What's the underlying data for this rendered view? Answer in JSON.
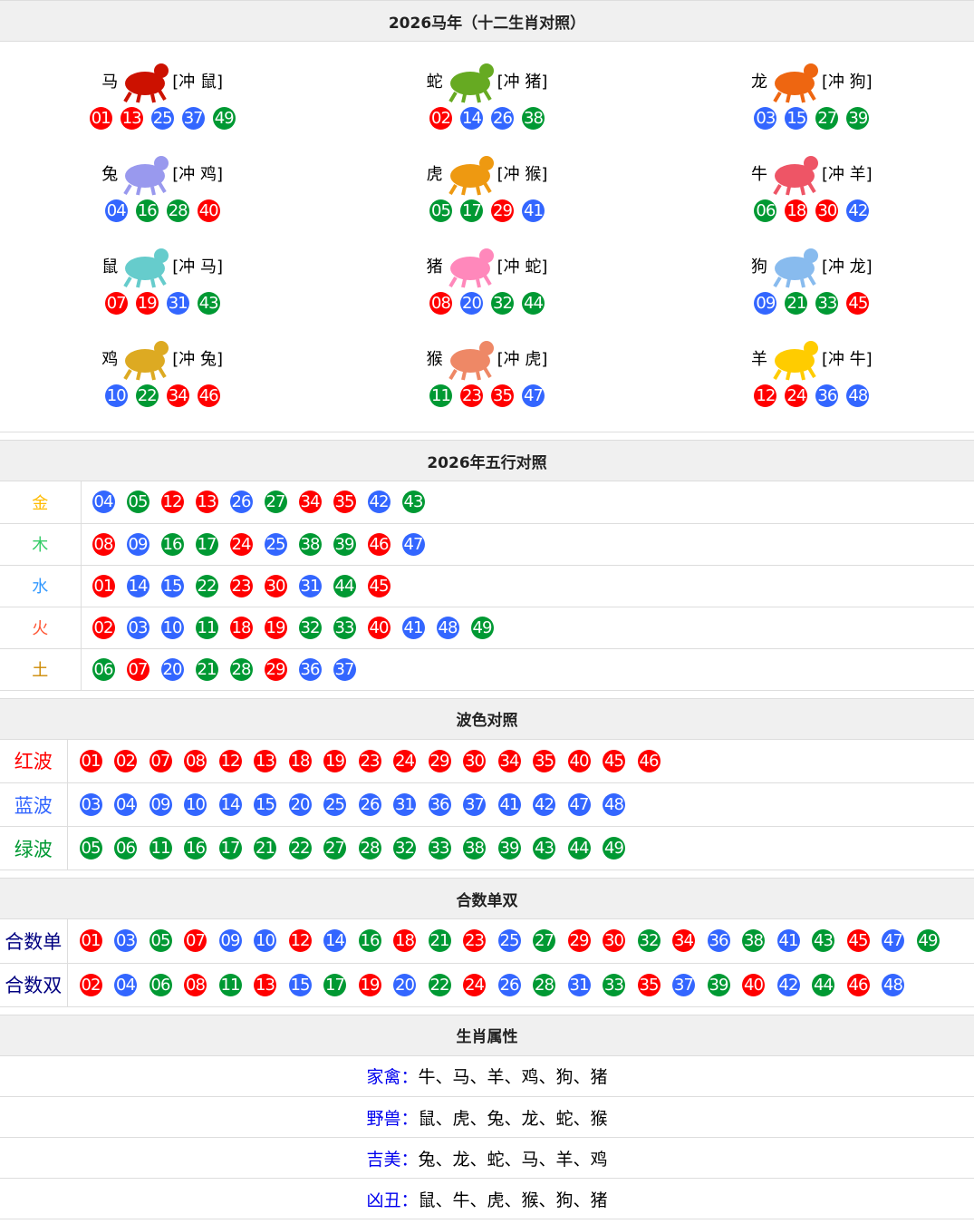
{
  "colors": {
    "red": "#ff0000",
    "blue": "#3366ff",
    "green": "#009933"
  },
  "zodiac": {
    "title": "2026马年（十二生肖对照）",
    "items": [
      {
        "name": "马",
        "clash": "[冲 鼠]",
        "icon": "horse-icon",
        "color": "#cc1100",
        "nums": [
          "01",
          "13",
          "25",
          "37",
          "49"
        ]
      },
      {
        "name": "蛇",
        "clash": "[冲 猪]",
        "icon": "snake-icon",
        "color": "#66aa22",
        "nums": [
          "02",
          "14",
          "26",
          "38"
        ]
      },
      {
        "name": "龙",
        "clash": "[冲 狗]",
        "icon": "dragon-icon",
        "color": "#ee6611",
        "nums": [
          "03",
          "15",
          "27",
          "39"
        ]
      },
      {
        "name": "兔",
        "clash": "[冲 鸡]",
        "icon": "rabbit-icon",
        "color": "#9999ee",
        "nums": [
          "04",
          "16",
          "28",
          "40"
        ]
      },
      {
        "name": "虎",
        "clash": "[冲 猴]",
        "icon": "tiger-icon",
        "color": "#ee9911",
        "nums": [
          "05",
          "17",
          "29",
          "41"
        ]
      },
      {
        "name": "牛",
        "clash": "[冲 羊]",
        "icon": "ox-icon",
        "color": "#ee5566",
        "nums": [
          "06",
          "18",
          "30",
          "42"
        ]
      },
      {
        "name": "鼠",
        "clash": "[冲 马]",
        "icon": "rat-icon",
        "color": "#66cccc",
        "nums": [
          "07",
          "19",
          "31",
          "43"
        ]
      },
      {
        "name": "猪",
        "clash": "[冲 蛇]",
        "icon": "pig-icon",
        "color": "#ff88bb",
        "nums": [
          "08",
          "20",
          "32",
          "44"
        ]
      },
      {
        "name": "狗",
        "clash": "[冲 龙]",
        "icon": "dog-icon",
        "color": "#88bbee",
        "nums": [
          "09",
          "21",
          "33",
          "45"
        ]
      },
      {
        "name": "鸡",
        "clash": "[冲 兔]",
        "icon": "rooster-icon",
        "color": "#ddaa22",
        "nums": [
          "10",
          "22",
          "34",
          "46"
        ]
      },
      {
        "name": "猴",
        "clash": "[冲 虎]",
        "icon": "monkey-icon",
        "color": "#ee8866",
        "nums": [
          "11",
          "23",
          "35",
          "47"
        ]
      },
      {
        "name": "羊",
        "clash": "[冲 牛]",
        "icon": "goat-icon",
        "color": "#ffcc00",
        "nums": [
          "12",
          "24",
          "36",
          "48"
        ]
      }
    ]
  },
  "wuxing": {
    "title": "2026年五行对照",
    "rows": [
      {
        "label": "金",
        "color": "#ffbb00",
        "nums": [
          "04",
          "05",
          "12",
          "13",
          "26",
          "27",
          "34",
          "35",
          "42",
          "43"
        ]
      },
      {
        "label": "木",
        "color": "#33cc66",
        "nums": [
          "08",
          "09",
          "16",
          "17",
          "24",
          "25",
          "38",
          "39",
          "46",
          "47"
        ]
      },
      {
        "label": "水",
        "color": "#3399ff",
        "nums": [
          "01",
          "14",
          "15",
          "22",
          "23",
          "30",
          "31",
          "44",
          "45"
        ]
      },
      {
        "label": "火",
        "color": "#ff5533",
        "nums": [
          "02",
          "03",
          "10",
          "11",
          "18",
          "19",
          "32",
          "33",
          "40",
          "41",
          "48",
          "49"
        ]
      },
      {
        "label": "土",
        "color": "#cc8800",
        "nums": [
          "06",
          "07",
          "20",
          "21",
          "28",
          "29",
          "36",
          "37"
        ]
      }
    ]
  },
  "waves": {
    "title": "波色对照",
    "rows": [
      {
        "label": "红波",
        "key": "red",
        "color": "#ff0000",
        "nums": [
          "01",
          "02",
          "07",
          "08",
          "12",
          "13",
          "18",
          "19",
          "23",
          "24",
          "29",
          "30",
          "34",
          "35",
          "40",
          "45",
          "46"
        ]
      },
      {
        "label": "蓝波",
        "key": "blue",
        "color": "#3366ff",
        "nums": [
          "03",
          "04",
          "09",
          "10",
          "14",
          "15",
          "20",
          "25",
          "26",
          "31",
          "36",
          "37",
          "41",
          "42",
          "47",
          "48"
        ]
      },
      {
        "label": "绿波",
        "key": "green",
        "color": "#009933",
        "nums": [
          "05",
          "06",
          "11",
          "16",
          "17",
          "21",
          "22",
          "27",
          "28",
          "32",
          "33",
          "38",
          "39",
          "43",
          "44",
          "49"
        ]
      }
    ]
  },
  "parity": {
    "title": "合数单双",
    "label_color": "#000080",
    "rows": [
      {
        "label": "合数单",
        "nums": [
          "01",
          "03",
          "05",
          "07",
          "09",
          "10",
          "12",
          "14",
          "16",
          "18",
          "21",
          "23",
          "25",
          "27",
          "29",
          "30",
          "32",
          "34",
          "36",
          "38",
          "41",
          "43",
          "45",
          "47",
          "49"
        ]
      },
      {
        "label": "合数双",
        "nums": [
          "02",
          "04",
          "06",
          "08",
          "11",
          "13",
          "15",
          "17",
          "19",
          "20",
          "22",
          "24",
          "26",
          "28",
          "31",
          "33",
          "35",
          "37",
          "39",
          "40",
          "42",
          "44",
          "46",
          "48"
        ]
      }
    ]
  },
  "attributes": {
    "title": "生肖属性",
    "rows": [
      {
        "key": "家禽：",
        "value": "牛、马、羊、鸡、狗、猪"
      },
      {
        "key": "野兽：",
        "value": "鼠、虎、兔、龙、蛇、猴"
      },
      {
        "key": "吉美：",
        "value": "兔、龙、蛇、马、羊、鸡"
      },
      {
        "key": "凶丑：",
        "value": "鼠、牛、虎、猴、狗、猪"
      }
    ]
  }
}
